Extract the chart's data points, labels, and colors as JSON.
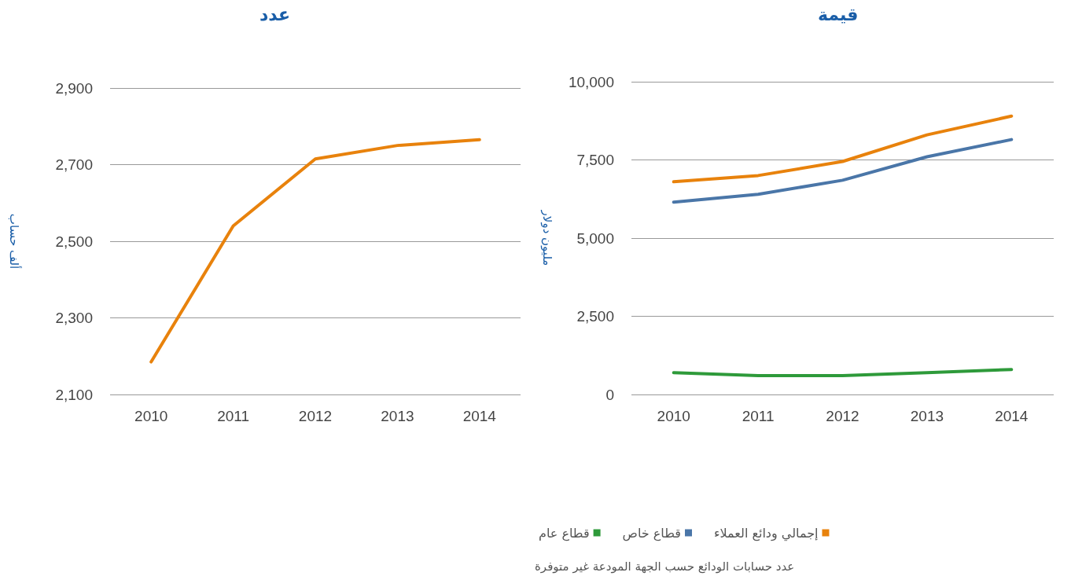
{
  "chart_data": [
    {
      "type": "line",
      "title": "عدد",
      "ylabel": "ألف حساب",
      "categories": [
        "2010",
        "2011",
        "2012",
        "2013",
        "2014"
      ],
      "ylim": [
        2100,
        2900
      ],
      "yticks": [
        {
          "value": 2100,
          "label": "2,100"
        },
        {
          "value": 2300,
          "label": "2,300"
        },
        {
          "value": 2500,
          "label": "2,500"
        },
        {
          "value": 2700,
          "label": "2,700"
        },
        {
          "value": 2900,
          "label": "2,900"
        }
      ],
      "grid": "y",
      "marker": "none",
      "line_style": "solid",
      "legend": false,
      "series": [
        {
          "color": "#e8820c",
          "values": [
            2185,
            2540,
            2715,
            2750,
            2765
          ]
        }
      ]
    },
    {
      "type": "line",
      "title": "قيمة",
      "ylabel": "مليون دولار",
      "categories": [
        "2010",
        "2011",
        "2012",
        "2013",
        "2014"
      ],
      "ylim": [
        0,
        10000
      ],
      "yticks": [
        0,
        {
          "value": 2500,
          "label": "2,500"
        },
        {
          "value": 5000,
          "label": "5,000"
        },
        {
          "value": 7500,
          "label": "7,500"
        },
        {
          "value": 10000,
          "label": "10,000"
        }
      ],
      "grid": "y",
      "marker": "none",
      "line_style": "solid",
      "legend": "bottom",
      "annotations": [
        "عدد حسابات الودائع حسب الجهة المودعة غير متوفرة"
      ],
      "series": [
        {
          "name": "إجمالي ودائع العملاء",
          "color": "#e8820c",
          "values": [
            6800,
            7000,
            7450,
            8300,
            8900
          ]
        },
        {
          "name": "قطاع خاص",
          "color": "#4a76a8",
          "values": [
            6150,
            6400,
            6850,
            7600,
            8150
          ]
        },
        {
          "name": "قطاع عام",
          "color": "#2e9a3a",
          "values": [
            700,
            600,
            600,
            700,
            800
          ]
        }
      ]
    }
  ]
}
